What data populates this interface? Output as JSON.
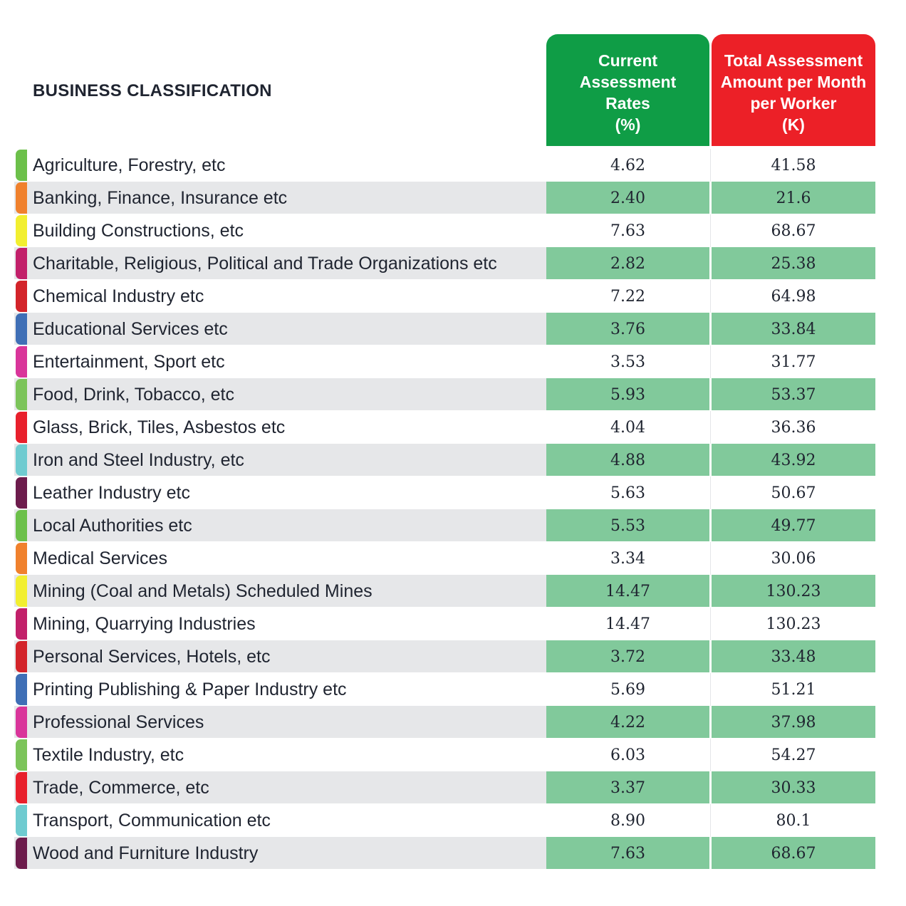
{
  "title": "BUSINESS CLASSIFICATION",
  "columns": {
    "rate": {
      "lines": [
        "Current",
        "Assessment",
        "Rates",
        "(%)"
      ],
      "color": "#0f9d46"
    },
    "amount": {
      "lines": [
        "Total Assessment",
        "Amount per Month",
        "per Worker",
        "(K)"
      ],
      "color": "#ec2027"
    }
  },
  "rows": [
    {
      "label": "Agriculture, Forestry, etc",
      "rate": "4.62",
      "amount": "41.58",
      "tab_color": "#6cc04a"
    },
    {
      "label": "Banking, Finance, Insurance etc",
      "rate": "2.40",
      "amount": "21.6",
      "tab_color": "#f0812d"
    },
    {
      "label": "Building Constructions, etc",
      "rate": "7.63",
      "amount": "68.67",
      "tab_color": "#f2ef30"
    },
    {
      "label": "Charitable, Religious, Political and Trade Organizations etc",
      "rate": "2.82",
      "amount": "25.38",
      "tab_color": "#c2206a"
    },
    {
      "label": "Chemical Industry etc",
      "rate": "7.22",
      "amount": "64.98",
      "tab_color": "#d3242a"
    },
    {
      "label": "Educational Services etc",
      "rate": "3.76",
      "amount": "33.84",
      "tab_color": "#3f6fb6"
    },
    {
      "label": "Entertainment, Sport etc",
      "rate": "3.53",
      "amount": "31.77",
      "tab_color": "#d9359a"
    },
    {
      "label": "Food, Drink, Tobacco, etc",
      "rate": "5.93",
      "amount": "53.37",
      "tab_color": "#7cc45a"
    },
    {
      "label": "Glass, Brick, Tiles, Asbestos etc",
      "rate": "4.04",
      "amount": "36.36",
      "tab_color": "#e8202c"
    },
    {
      "label": "Iron and Steel Industry, etc",
      "rate": "4.88",
      "amount": "43.92",
      "tab_color": "#6fcbd0"
    },
    {
      "label": "Leather Industry etc",
      "rate": "5.63",
      "amount": "50.67",
      "tab_color": "#6d1c4c"
    },
    {
      "label": "Local Authorities etc",
      "rate": "5.53",
      "amount": "49.77",
      "tab_color": "#6cc04a"
    },
    {
      "label": "Medical Services",
      "rate": "3.34",
      "amount": "30.06",
      "tab_color": "#f0812d"
    },
    {
      "label": "Mining (Coal and Metals) Scheduled Mines",
      "rate": "14.47",
      "amount": "130.23",
      "tab_color": "#f2ef30"
    },
    {
      "label": "Mining, Quarrying Industries",
      "rate": "14.47",
      "amount": "130.23",
      "tab_color": "#c2206a"
    },
    {
      "label": "Personal Services, Hotels, etc",
      "rate": "3.72",
      "amount": "33.48",
      "tab_color": "#d3242a"
    },
    {
      "label": "Printing Publishing & Paper Industry etc",
      "rate": "5.69",
      "amount": "51.21",
      "tab_color": "#3f6fb6"
    },
    {
      "label": "Professional Services",
      "rate": "4.22",
      "amount": "37.98",
      "tab_color": "#d9359a"
    },
    {
      "label": "Textile Industry, etc",
      "rate": "6.03",
      "amount": "54.27",
      "tab_color": "#7cc45a"
    },
    {
      "label": "Trade, Commerce, etc",
      "rate": "3.37",
      "amount": "30.33",
      "tab_color": "#e8202c"
    },
    {
      "label": "Transport, Communication etc",
      "rate": "8.90",
      "amount": "80.1",
      "tab_color": "#6fcbd0"
    },
    {
      "label": "Wood and Furniture Industry",
      "rate": "7.63",
      "amount": "68.67",
      "tab_color": "#6d1c4c"
    }
  ]
}
